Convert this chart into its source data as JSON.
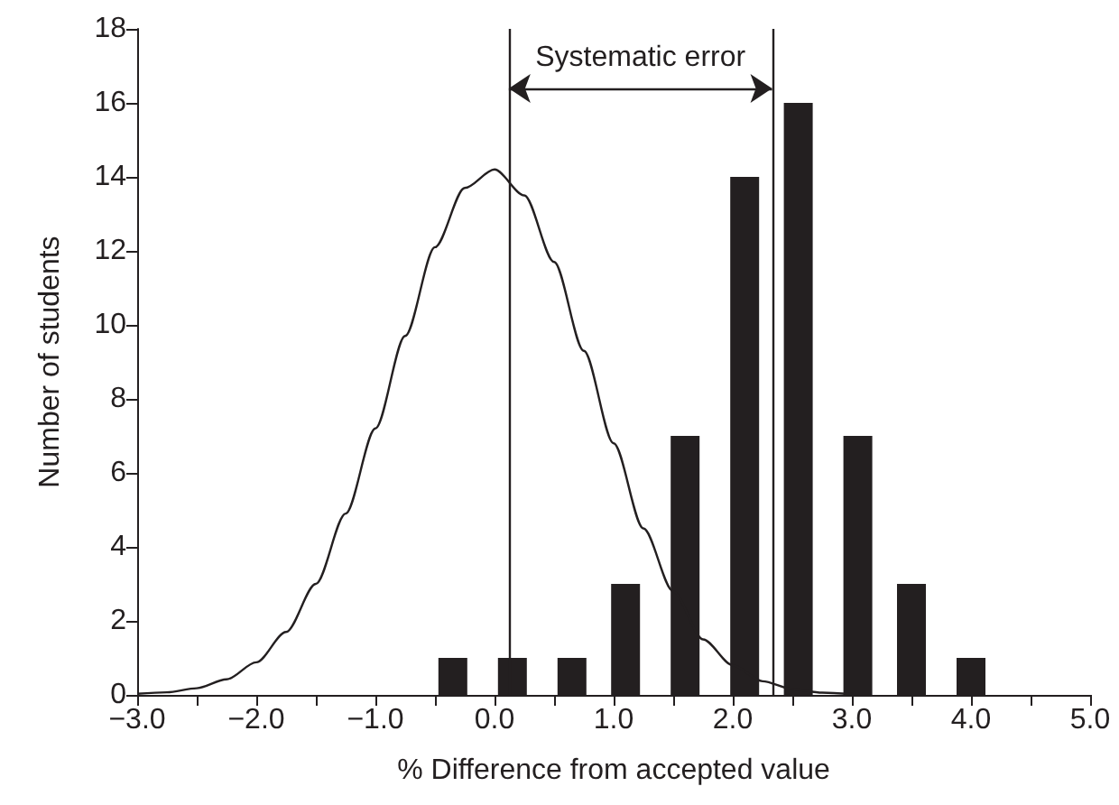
{
  "chart_data": {
    "type": "bar",
    "xlabel": "% Difference from accepted value",
    "ylabel": "Number of students",
    "x": [
      -0.35,
      0.15,
      0.65,
      1.1,
      1.6,
      2.1,
      2.55,
      3.05,
      3.5,
      4.0
    ],
    "series": [
      {
        "color": "#231f20",
        "values": [
          1,
          1,
          1,
          3,
          7,
          14,
          16,
          7,
          3,
          1
        ]
      },
      {
        "type": "line",
        "color": "#231f20",
        "marker": "none",
        "line_style": "solid",
        "x": [
          -3.0,
          -2.75,
          -2.5,
          -2.25,
          -2.0,
          -1.75,
          -1.5,
          -1.25,
          -1.0,
          -0.75,
          -0.5,
          -0.25,
          0.0,
          0.25,
          0.5,
          0.75,
          1.0,
          1.25,
          1.5,
          1.75,
          2.0,
          2.25,
          2.5,
          2.75,
          3.0
        ],
        "values": [
          0.03,
          0.07,
          0.18,
          0.42,
          0.88,
          1.7,
          3.0,
          4.9,
          7.2,
          9.7,
          12.1,
          13.7,
          14.2,
          13.5,
          11.7,
          9.3,
          6.8,
          4.5,
          2.8,
          1.5,
          0.8,
          0.37,
          0.16,
          0.06,
          0.02
        ]
      }
    ],
    "xlim": [
      -3.0,
      5.0
    ],
    "xticks": [
      {
        "value": -3,
        "label": "−3.0"
      },
      {
        "value": -2.5,
        "label": null
      },
      {
        "value": -2,
        "label": "−2.0"
      },
      {
        "value": -1.5,
        "label": null
      },
      {
        "value": -1,
        "label": "−1.0"
      },
      {
        "value": -0.5,
        "label": null
      },
      {
        "value": 0,
        "label": "0.0"
      },
      {
        "value": 0.5,
        "label": null
      },
      {
        "value": 1,
        "label": "1.0"
      },
      {
        "value": 1.5,
        "label": null
      },
      {
        "value": 2,
        "label": "2.0"
      },
      {
        "value": 2.5,
        "label": null
      },
      {
        "value": 3,
        "label": "3.0"
      },
      {
        "value": 3.5,
        "label": null
      },
      {
        "value": 4,
        "label": "4.0"
      },
      {
        "value": 4.5,
        "label": null
      },
      {
        "value": 5,
        "label": "5.0"
      }
    ],
    "ylim": [
      0,
      18
    ],
    "yticks": [
      0,
      2,
      4,
      6,
      8,
      10,
      12,
      14,
      16,
      18
    ],
    "ref_lines": [
      {
        "axis": "x",
        "value": 0.12,
        "label": null,
        "color": "#231f20"
      },
      {
        "axis": "x",
        "value": 2.33,
        "label": null,
        "color": "#231f20"
      }
    ],
    "annotations": [
      "Systematic error"
    ]
  }
}
